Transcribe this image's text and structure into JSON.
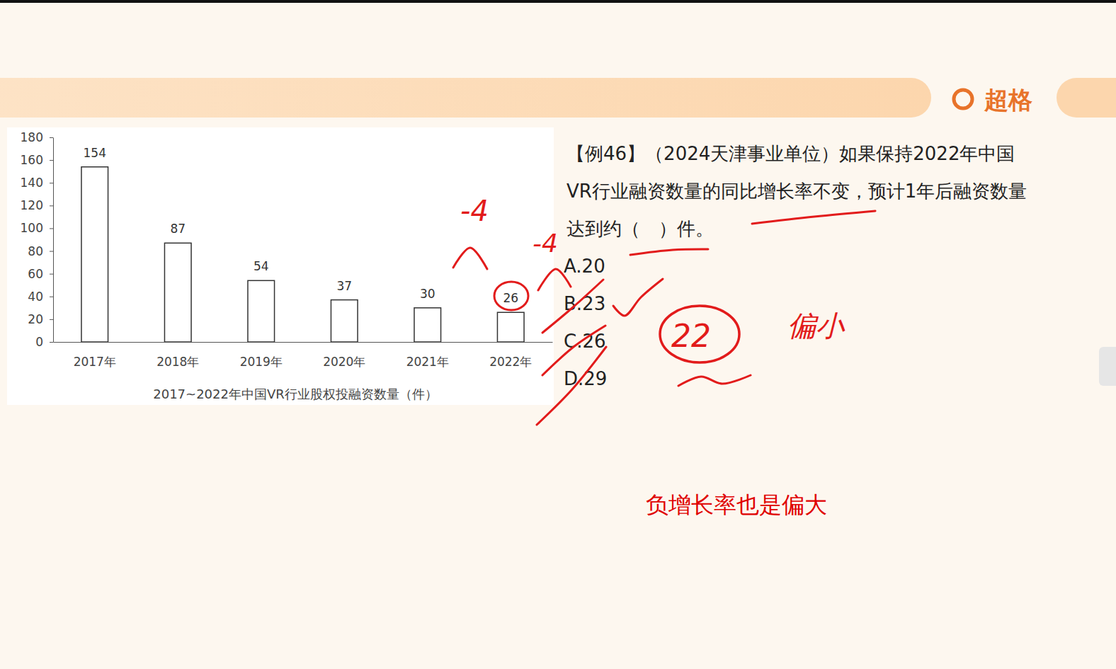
{
  "chart_data": {
    "type": "bar",
    "title": "2017~2022年中国VR行业股权投融资数量（件）",
    "categories": [
      "2017年",
      "2018年",
      "2019年",
      "2020年",
      "2021年",
      "2022年"
    ],
    "values": [
      154,
      87,
      54,
      37,
      30,
      26
    ],
    "color": "#ffffff",
    "ylim": [
      0,
      180
    ],
    "yticks": [
      0,
      20,
      40,
      60,
      80,
      100,
      120,
      140,
      160,
      180
    ],
    "data_labels": true
  },
  "logo": "超格",
  "question": {
    "lines": [
      "【例46】（2024天津事业单位）如果保持2022年中国",
      "VR行业融资数量的同比增长率不变，预计1年后融资数量",
      "达到约（　）件。"
    ],
    "options": [
      "A.20",
      "B.23",
      "C.26",
      "D.29"
    ]
  },
  "handwriting": [
    "-4",
    "-4",
    "22",
    "偏小"
  ],
  "note": "负增长率也是偏大"
}
